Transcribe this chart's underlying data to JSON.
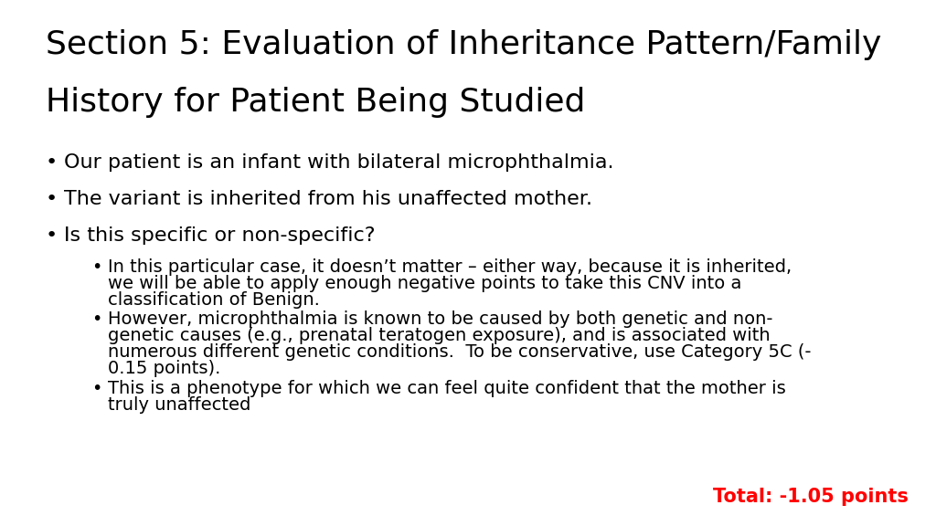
{
  "background_color": "#ffffff",
  "title_line1": "Section 5: Evaluation of Inheritance Pattern/Family",
  "title_line2": "History for Patient Being Studied",
  "title_fontsize": 26,
  "title_color": "#000000",
  "bullet1": "Our patient is an infant with bilateral microphthalmia.",
  "bullet2": "The variant is inherited from his unaffected mother.",
  "bullet3": "Is this specific or non-specific?",
  "sub_bullet1_line1": "In this particular case, it doesn’t matter – either way, because it is inherited,",
  "sub_bullet1_line2": "we will be able to apply enough negative points to take this CNV into a",
  "sub_bullet1_line3": "classification of Benign.",
  "sub_bullet2_line1": "However, microphthalmia is known to be caused by both genetic and non-",
  "sub_bullet2_line2": "genetic causes (e.g., prenatal teratogen exposure), and is associated with",
  "sub_bullet2_line3": "numerous different genetic conditions.  To be conservative, use Category 5C (-",
  "sub_bullet2_line4": "0.15 points).",
  "sub_bullet3_line1": "This is a phenotype for which we can feel quite confident that the mother is",
  "sub_bullet3_line2": "truly unaffected",
  "total_text": "Total: -1.05 points",
  "total_color": "#ff0000",
  "total_fontsize": 15,
  "body_fontsize": 16,
  "sub_fontsize": 14,
  "body_color": "#000000",
  "font_family": "DejaVu Sans"
}
